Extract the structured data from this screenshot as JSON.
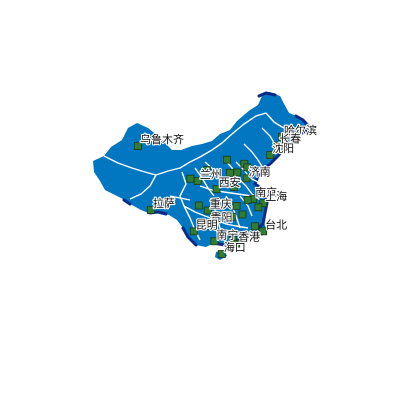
{
  "map": {
    "land_color": "#0077c0",
    "border_color": "#ffffff",
    "coast_color": "#0a2a8a",
    "marker_color": "#2e7d32",
    "cities": [
      {
        "id": "urumqi",
        "name": "乌鲁木齐",
        "lon": 87.6,
        "lat": 43.8
      },
      {
        "id": "harbin",
        "name": "哈尔滨",
        "lon": 126.6,
        "lat": 45.8
      },
      {
        "id": "changchun",
        "name": "长春",
        "lon": 125.3,
        "lat": 43.9
      },
      {
        "id": "shenyang",
        "name": "沈阳",
        "lon": 123.4,
        "lat": 41.8
      },
      {
        "id": "beijing",
        "name": "",
        "lon": 116.4,
        "lat": 39.9
      },
      {
        "id": "tianjin",
        "name": "",
        "lon": 117.2,
        "lat": 39.1
      },
      {
        "id": "shijiazhuang",
        "name": "",
        "lon": 114.5,
        "lat": 38.0
      },
      {
        "id": "taiyuan",
        "name": "",
        "lon": 112.5,
        "lat": 37.9
      },
      {
        "id": "hohhot",
        "name": "",
        "lon": 111.7,
        "lat": 40.8
      },
      {
        "id": "jinan",
        "name": "济南",
        "lon": 117.0,
        "lat": 36.7
      },
      {
        "id": "yinchuan",
        "name": "",
        "lon": 106.3,
        "lat": 38.5
      },
      {
        "id": "lanzhou",
        "name": "兰州",
        "lon": 103.8,
        "lat": 36.1
      },
      {
        "id": "xining",
        "name": "",
        "lon": 101.8,
        "lat": 36.6
      },
      {
        "id": "xian",
        "name": "西安",
        "lon": 108.9,
        "lat": 34.3
      },
      {
        "id": "zhengzhou",
        "name": "",
        "lon": 113.6,
        "lat": 34.8
      },
      {
        "id": "nanjing",
        "name": "南京",
        "lon": 118.8,
        "lat": 32.1
      },
      {
        "id": "shanghai",
        "name": "上海",
        "lon": 121.5,
        "lat": 31.2
      },
      {
        "id": "hefei",
        "name": "",
        "lon": 117.3,
        "lat": 31.9
      },
      {
        "id": "hangzhou",
        "name": "",
        "lon": 120.2,
        "lat": 30.3
      },
      {
        "id": "wuhan",
        "name": "",
        "lon": 114.3,
        "lat": 30.6
      },
      {
        "id": "chengdu",
        "name": "",
        "lon": 104.1,
        "lat": 30.7
      },
      {
        "id": "chongqing",
        "name": "重庆",
        "lon": 106.5,
        "lat": 29.6
      },
      {
        "id": "lhasa",
        "name": "拉萨",
        "lon": 91.1,
        "lat": 29.7
      },
      {
        "id": "changsha",
        "name": "",
        "lon": 113.0,
        "lat": 28.2
      },
      {
        "id": "nanchang",
        "name": "",
        "lon": 115.9,
        "lat": 28.7
      },
      {
        "id": "fuzhou",
        "name": "",
        "lon": 119.3,
        "lat": 26.1
      },
      {
        "id": "taipei",
        "name": "台北",
        "lon": 121.5,
        "lat": 25.0
      },
      {
        "id": "guiyang",
        "name": "贵阳",
        "lon": 106.7,
        "lat": 26.6
      },
      {
        "id": "kunming",
        "name": "昆明",
        "lon": 102.7,
        "lat": 25.0
      },
      {
        "id": "nanning",
        "name": "南宁",
        "lon": 108.3,
        "lat": 22.8
      },
      {
        "id": "guangzhou",
        "name": "",
        "lon": 113.3,
        "lat": 23.1
      },
      {
        "id": "hongkong",
        "name": "香港",
        "lon": 114.2,
        "lat": 22.3
      },
      {
        "id": "macau",
        "name": "",
        "lon": 113.5,
        "lat": 22.2
      },
      {
        "id": "haikou",
        "name": "海口",
        "lon": 110.3,
        "lat": 20.0
      }
    ]
  }
}
